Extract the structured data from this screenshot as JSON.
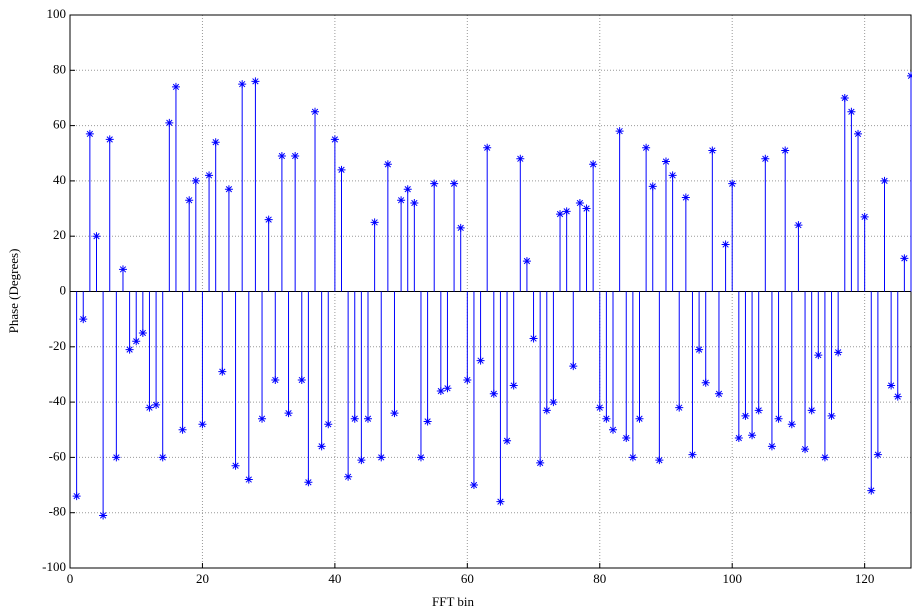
{
  "chart_data": {
    "type": "stem",
    "xlabel": "FFT bin",
    "ylabel": "Phase (Degrees)",
    "x": [
      1,
      2,
      3,
      4,
      5,
      6,
      7,
      8,
      9,
      10,
      11,
      12,
      13,
      14,
      15,
      16,
      17,
      18,
      19,
      20,
      21,
      22,
      23,
      24,
      25,
      26,
      27,
      28,
      29,
      30,
      31,
      32,
      33,
      34,
      35,
      36,
      37,
      38,
      39,
      40,
      41,
      42,
      43,
      44,
      45,
      46,
      47,
      48,
      49,
      50,
      51,
      52,
      53,
      54,
      55,
      56,
      57,
      58,
      59,
      60,
      61,
      62,
      63,
      64,
      65,
      66,
      67,
      68,
      69,
      70,
      71,
      72,
      73,
      74,
      75,
      76,
      77,
      78,
      79,
      80,
      81,
      82,
      83,
      84,
      85,
      86,
      87,
      88,
      89,
      90,
      91,
      92,
      93,
      94,
      95,
      96,
      97,
      98,
      99,
      100,
      101,
      102,
      103,
      104,
      105,
      106,
      107,
      108,
      109,
      110,
      111,
      112,
      113,
      114,
      115,
      116,
      117,
      118,
      119,
      120,
      121,
      122,
      123,
      124,
      125,
      126,
      127
    ],
    "values": [
      -74,
      -10,
      57,
      20,
      -81,
      55,
      -60,
      8,
      -21,
      -18,
      -15,
      -42,
      -41,
      -60,
      61,
      74,
      -50,
      33,
      40,
      -48,
      42,
      54,
      -29,
      37,
      -63,
      75,
      -68,
      76,
      -46,
      26,
      -32,
      49,
      -44,
      49,
      -32,
      -69,
      65,
      -56,
      -48,
      55,
      44,
      -67,
      -46,
      -61,
      -46,
      25,
      -60,
      46,
      -44,
      33,
      37,
      32,
      -60,
      -47,
      39,
      -36,
      -35,
      39,
      23,
      -32,
      -70,
      -25,
      52,
      -37,
      -76,
      -54,
      -34,
      48,
      11,
      -17,
      -62,
      -43,
      -40,
      28,
      29,
      -27,
      32,
      30,
      46,
      -42,
      -46,
      -50,
      58,
      -53,
      -60,
      -46,
      52,
      38,
      -61,
      47,
      42,
      -42,
      34,
      -59,
      -21,
      -33,
      51,
      -37,
      17,
      39,
      -53,
      -45,
      -52,
      -43,
      48,
      -56,
      -46,
      51,
      -48,
      24,
      -57,
      -43,
      -23,
      -60,
      -45,
      -22,
      70,
      65,
      57,
      27,
      -72,
      -59,
      40,
      -34,
      -38,
      12,
      78
    ],
    "color": "#0000ff",
    "xlim": [
      0,
      127
    ],
    "ylim": [
      -100,
      100
    ],
    "xticks": [
      0,
      20,
      40,
      60,
      80,
      100,
      120
    ],
    "yticks": [
      -100,
      -80,
      -60,
      -40,
      -20,
      0,
      20,
      40,
      60,
      80,
      100
    ],
    "grid": true
  }
}
